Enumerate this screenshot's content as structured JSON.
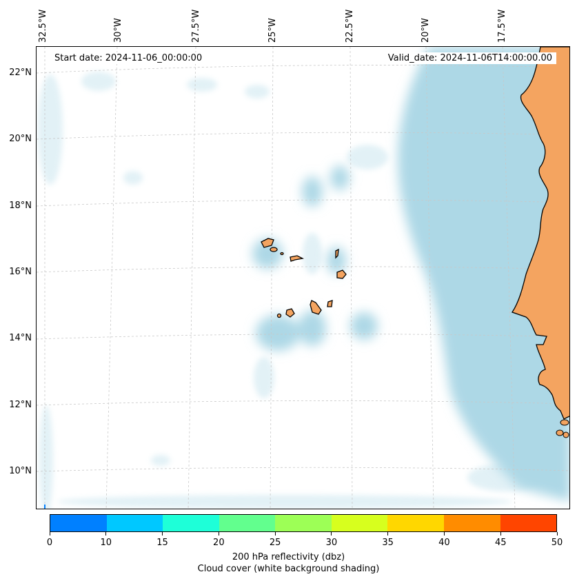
{
  "map": {
    "start_date": "Start date: 2024-11-06_00:00:00",
    "valid_date": "Valid_date: 2024-11-06T14:00:00.00",
    "lon_labels": [
      "32.5°W",
      "30°W",
      "27.5°W",
      "25°W",
      "22.5°W",
      "20°W",
      "17.5°W"
    ],
    "lat_labels": [
      "22°N",
      "20°N",
      "18°N",
      "16°N",
      "14°N",
      "12°N",
      "10°N"
    ],
    "land_color": "#f4a460",
    "cloud_color": "#add8e6",
    "coastline_color": "#000000",
    "gridlines": "dashed grey",
    "features": [
      "Cape Verde islands",
      "West African coast (Senegal, Mauritania, Gambia, Guinea-Bissau)"
    ]
  },
  "colorbar": {
    "ticks": [
      "0",
      "10",
      "15",
      "20",
      "25",
      "30",
      "35",
      "40",
      "45",
      "50"
    ],
    "colors": [
      "#0080ff",
      "#00c8ff",
      "#1effd8",
      "#62ff8e",
      "#9dff56",
      "#d7ff1e",
      "#ffd700",
      "#ff8c00",
      "#ff4500"
    ],
    "label_line1": "200 hPa reflectivity (dbz)",
    "label_line2": "Cloud cover (white background shading)"
  }
}
